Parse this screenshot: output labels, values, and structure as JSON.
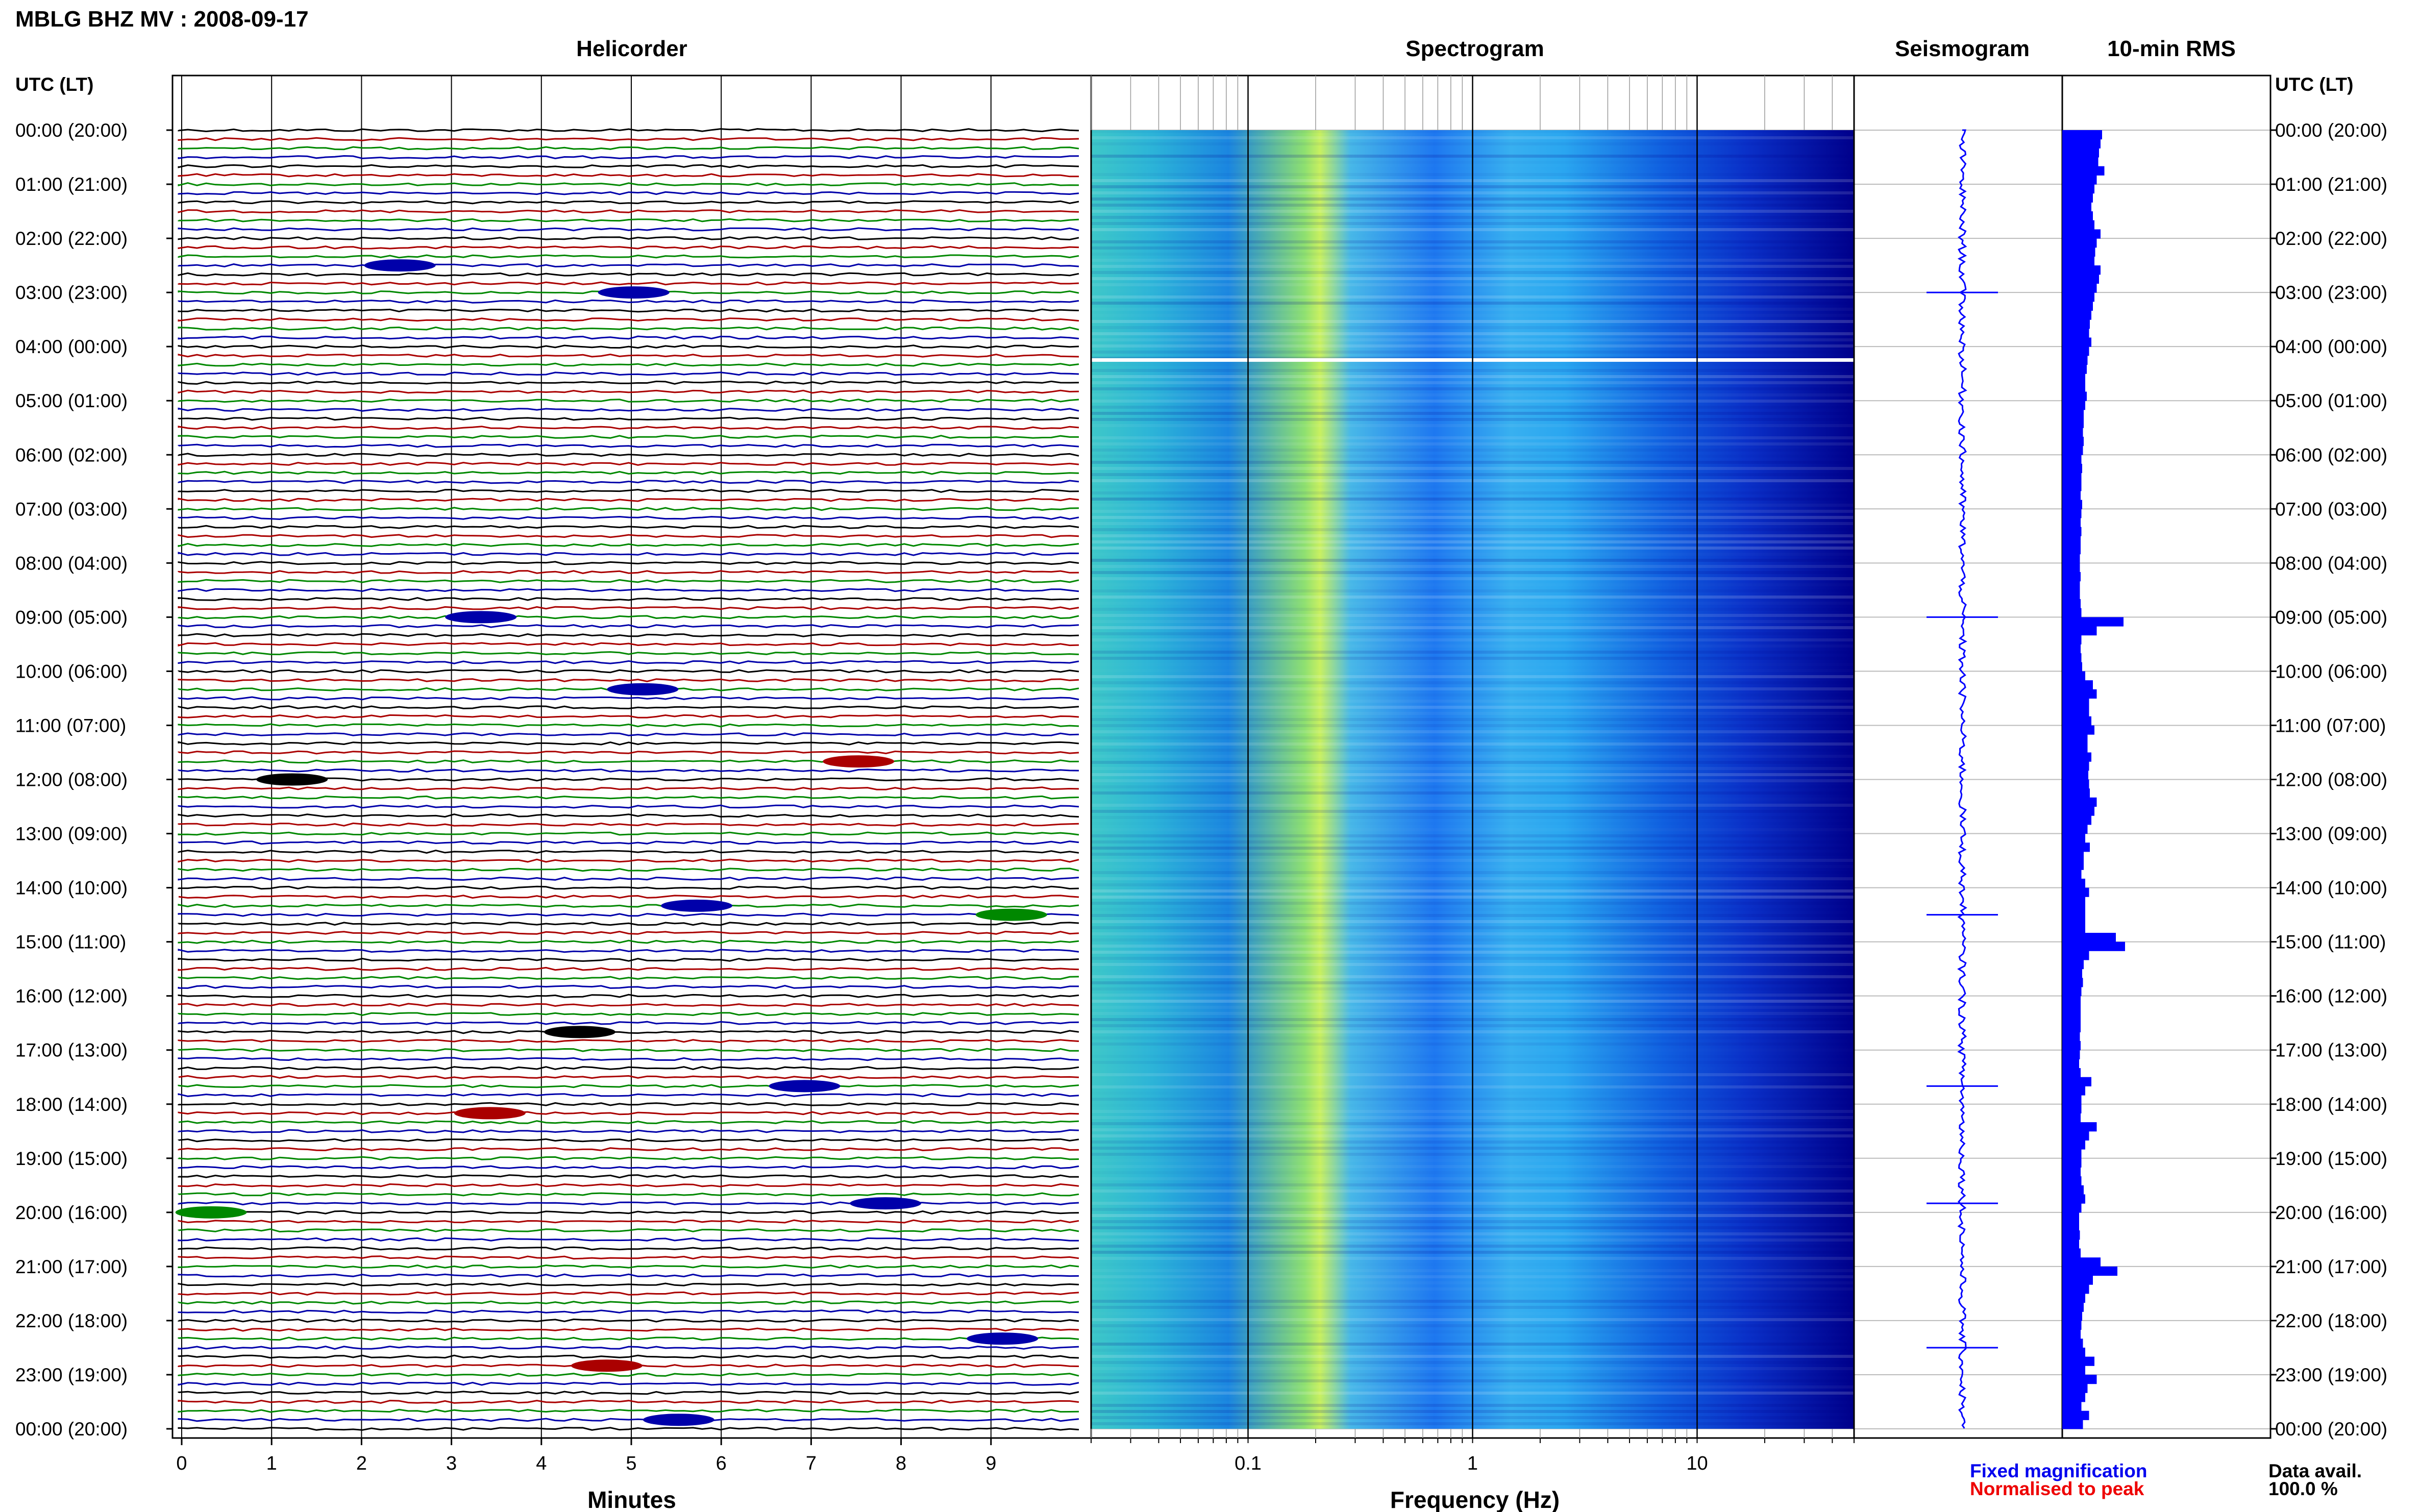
{
  "page_title": "MBLG BHZ MV : 2008-09-17",
  "panels": {
    "helicorder": "Helicorder",
    "spectrogram": "Spectrogram",
    "seismogram": "Seismogram",
    "rms": "10-min RMS"
  },
  "time_axis_label": "UTC (LT)",
  "time_ticks": [
    "00:00 (20:00)",
    "01:00 (21:00)",
    "02:00 (22:00)",
    "03:00 (23:00)",
    "04:00 (00:00)",
    "05:00 (01:00)",
    "06:00 (02:00)",
    "07:00 (03:00)",
    "08:00 (04:00)",
    "09:00 (05:00)",
    "10:00 (06:00)",
    "11:00 (07:00)",
    "12:00 (08:00)",
    "13:00 (09:00)",
    "14:00 (10:00)",
    "15:00 (11:00)",
    "16:00 (12:00)",
    "17:00 (13:00)",
    "18:00 (14:00)",
    "19:00 (15:00)",
    "20:00 (16:00)",
    "21:00 (17:00)",
    "22:00 (18:00)",
    "23:00 (19:00)",
    "00:00 (20:00)"
  ],
  "x_axes": {
    "minutes": {
      "label": "Minutes",
      "ticks": [
        "0",
        "1",
        "2",
        "3",
        "4",
        "5",
        "6",
        "7",
        "8",
        "9"
      ]
    },
    "frequency": {
      "label": "Frequency (Hz)",
      "ticks": [
        "0.1",
        "1",
        "10"
      ]
    }
  },
  "legend": {
    "fixed": "Fixed magnification",
    "normalised": "Normalised to peak",
    "fixed_color": "#0000ee",
    "normalised_color": "#ee0000"
  },
  "data_availability": {
    "label": "Data avail.",
    "value": "100.0 %"
  },
  "colors": {
    "trace_cycle": [
      "#000000",
      "#aa0000",
      "#008800",
      "#0000aa"
    ],
    "spectrogram_low": "#00008b",
    "spectrogram_high": "#c8f060",
    "rms_bar": "#0000ff",
    "seismogram": "#0000ff"
  },
  "chart_data": [
    {
      "type": "line",
      "name": "Helicorder",
      "x_unit": "minutes",
      "xlim": [
        0,
        10
      ],
      "rows_per_hour": 6,
      "rows_total": 144,
      "events": [
        {
          "time_utc": "02:30",
          "minute": 2.2,
          "color": "#0000aa"
        },
        {
          "time_utc": "03:00",
          "minute": 4.8,
          "color": "#0000aa"
        },
        {
          "time_utc": "09:00",
          "minute": 3.1,
          "color": "#0000aa"
        },
        {
          "time_utc": "10:20",
          "minute": 4.9,
          "color": "#0000aa"
        },
        {
          "time_utc": "11:40",
          "minute": 7.3,
          "color": "#aa0000"
        },
        {
          "time_utc": "12:00",
          "minute": 1.0,
          "color": "#000000"
        },
        {
          "time_utc": "14:20",
          "minute": 5.5,
          "color": "#0000aa"
        },
        {
          "time_utc": "14:30",
          "minute": 9.0,
          "color": "#008800"
        },
        {
          "time_utc": "16:40",
          "minute": 4.2,
          "color": "#000000"
        },
        {
          "time_utc": "17:40",
          "minute": 6.7,
          "color": "#0000aa"
        },
        {
          "time_utc": "18:10",
          "minute": 3.2,
          "color": "#aa0000"
        },
        {
          "time_utc": "19:50",
          "minute": 7.6,
          "color": "#0000aa"
        },
        {
          "time_utc": "20:00",
          "minute": 0.1,
          "color": "#008800"
        },
        {
          "time_utc": "22:20",
          "minute": 8.9,
          "color": "#0000aa"
        },
        {
          "time_utc": "22:50",
          "minute": 4.5,
          "color": "#aa0000"
        },
        {
          "time_utc": "23:50",
          "minute": 5.3,
          "color": "#0000aa"
        }
      ]
    },
    {
      "type": "heatmap",
      "name": "Spectrogram",
      "x_scale": "log",
      "xlim_hz": [
        0.02,
        50
      ],
      "peak_band_hz": 0.25,
      "gap_time_utc": "04:10"
    },
    {
      "type": "line",
      "name": "Seismogram",
      "bursts_utc": [
        "03:00",
        "09:00",
        "14:30",
        "17:40",
        "19:50",
        "22:30"
      ]
    },
    {
      "type": "bar",
      "name": "10-min RMS",
      "unit": "relative",
      "xlim": [
        0,
        1
      ],
      "values": [
        0.52,
        0.5,
        0.48,
        0.47,
        0.55,
        0.45,
        0.42,
        0.4,
        0.38,
        0.4,
        0.42,
        0.5,
        0.45,
        0.43,
        0.42,
        0.5,
        0.48,
        0.45,
        0.42,
        0.4,
        0.38,
        0.36,
        0.35,
        0.38,
        0.35,
        0.33,
        0.32,
        0.3,
        0.3,
        0.32,
        0.3,
        0.28,
        0.28,
        0.27,
        0.28,
        0.27,
        0.25,
        0.26,
        0.25,
        0.25,
        0.24,
        0.26,
        0.25,
        0.24,
        0.25,
        0.24,
        0.24,
        0.23,
        0.23,
        0.24,
        0.23,
        0.23,
        0.24,
        0.25,
        0.8,
        0.45,
        0.25,
        0.24,
        0.25,
        0.26,
        0.3,
        0.4,
        0.45,
        0.35,
        0.35,
        0.38,
        0.42,
        0.33,
        0.33,
        0.38,
        0.35,
        0.34,
        0.35,
        0.36,
        0.45,
        0.42,
        0.38,
        0.33,
        0.3,
        0.36,
        0.28,
        0.28,
        0.25,
        0.3,
        0.35,
        0.3,
        0.3,
        0.3,
        0.3,
        0.7,
        0.82,
        0.35,
        0.28,
        0.26,
        0.27,
        0.25,
        0.24,
        0.24,
        0.24,
        0.24,
        0.23,
        0.24,
        0.23,
        0.22,
        0.24,
        0.38,
        0.3,
        0.25,
        0.25,
        0.24,
        0.45,
        0.35,
        0.3,
        0.25,
        0.25,
        0.24,
        0.25,
        0.28,
        0.3,
        0.25,
        0.22,
        0.22,
        0.23,
        0.22,
        0.24,
        0.5,
        0.72,
        0.4,
        0.35,
        0.3,
        0.28,
        0.26,
        0.25,
        0.24,
        0.27,
        0.3,
        0.42,
        0.3,
        0.45,
        0.33,
        0.3,
        0.25,
        0.35,
        0.27
      ]
    }
  ]
}
